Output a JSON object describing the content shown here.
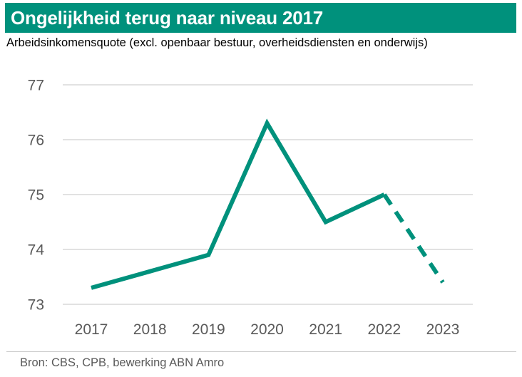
{
  "title": "Ongelijkheid terug naar niveau 2017",
  "subtitle": "Arbeidsinkomensquote (excl. openbaar bestuur, overheidsdiensten en onderwijs)",
  "source": "Bron: CBS, CPB, bewerking ABN Amro",
  "colors": {
    "title_background": "#00917c",
    "line": "#00917c",
    "grid": "#d9d9d9",
    "tick_text": "#595959"
  },
  "chart_data": {
    "type": "line",
    "title": "Ongelijkheid terug naar niveau 2017",
    "subtitle": "Arbeidsinkomensquote (excl. openbaar bestuur, overheidsdiensten en onderwijs)",
    "xlabel": "",
    "ylabel": "",
    "categories": [
      "2017",
      "2018",
      "2019",
      "2020",
      "2021",
      "2022",
      "2023"
    ],
    "ylim": [
      73,
      77
    ],
    "yticks": [
      73,
      74,
      75,
      76,
      77
    ],
    "grid": true,
    "legend": "none",
    "series": [
      {
        "name": "Arbeidsinkomensquote",
        "values": [
          73.3,
          73.6,
          73.9,
          76.3,
          74.5,
          75.0,
          73.4
        ],
        "solid_until_index": 5,
        "dashed_from_index": 5
      }
    ]
  }
}
